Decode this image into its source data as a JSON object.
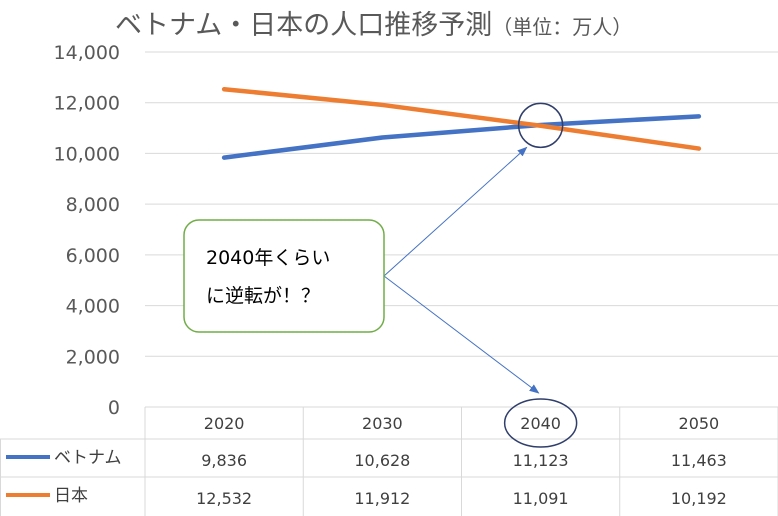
{
  "chart_data": {
    "type": "line",
    "title": "ベトナム・日本の人口推移予測",
    "title_unit": "（単位：万人）",
    "categories": [
      "2020",
      "2030",
      "2040",
      "2050"
    ],
    "series": [
      {
        "name": "ベトナム",
        "color": "#4472C4",
        "values": [
          9836,
          10628,
          11123,
          11463
        ],
        "labels": [
          "9,836",
          "10,628",
          "11,123",
          "11,463"
        ]
      },
      {
        "name": "日本",
        "color": "#ED7D31",
        "values": [
          12532,
          11912,
          11091,
          10192
        ],
        "labels": [
          "12,532",
          "11,912",
          "11,091",
          "10,192"
        ]
      }
    ],
    "ylim": [
      0,
      14000
    ],
    "yticks": [
      "0",
      "2,000",
      "4,000",
      "6,000",
      "8,000",
      "10,000",
      "12,000",
      "14,000"
    ],
    "grid": true,
    "data_table": true,
    "annotation": {
      "lines": [
        "2040年くらい",
        "に逆転が！？"
      ],
      "border_color": "#70AD47",
      "circle_color": "#2F3E6B",
      "arrow_color": "#4472C4"
    }
  }
}
